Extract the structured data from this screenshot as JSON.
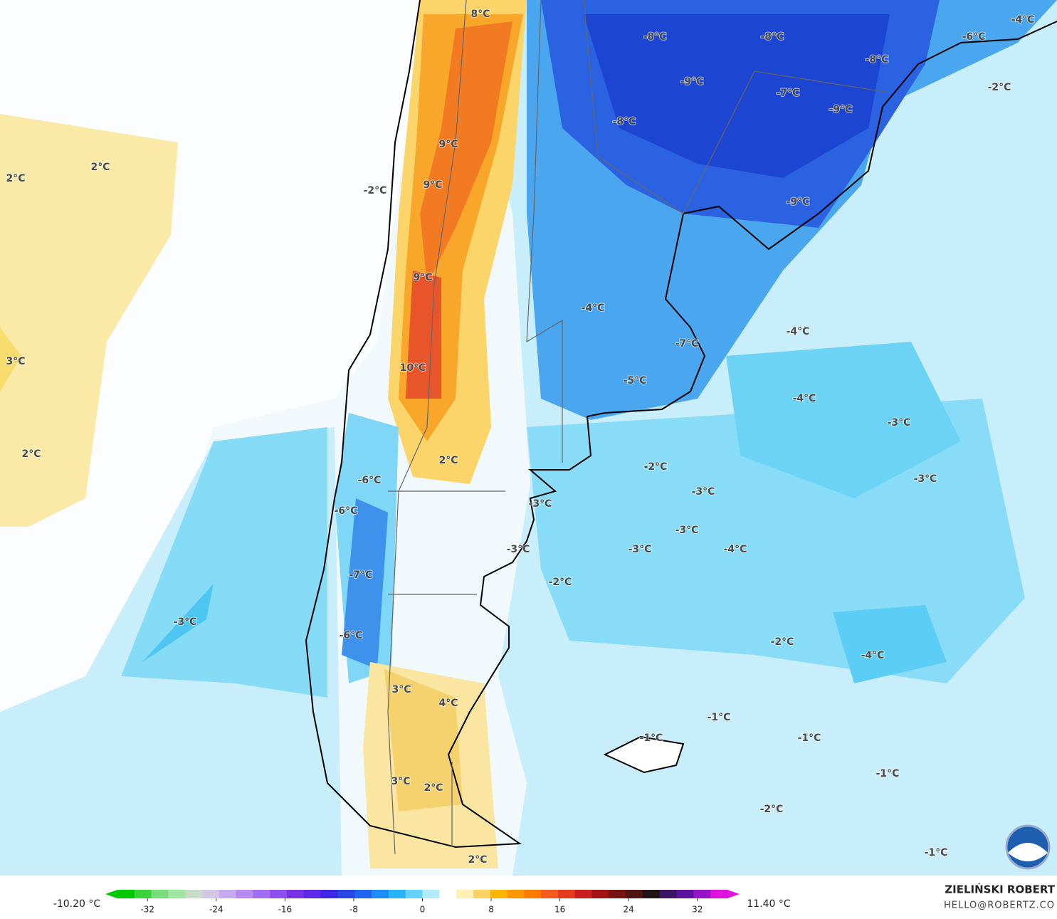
{
  "labels": [
    "8°C",
    "-8°C",
    "-8°C",
    "-6°C",
    "-4°C",
    "-8°C",
    "-9°C",
    "-7°C",
    "-9°C",
    "-2°C",
    "-8°C",
    "9°C",
    "2°C",
    "2°C",
    "9°C",
    "-2°C",
    "-9°C",
    "9°C",
    "-4°C",
    "-4°C",
    "-7°C",
    "3°C",
    "10°C",
    "-5°C",
    "-4°C",
    "-3°C",
    "2°C",
    "2°C",
    "-2°C",
    "-6°C",
    "-3°C",
    "-3°C",
    "-3°C",
    "-6°C",
    "-3°C",
    "-3°C",
    "-3°C",
    "-4°C",
    "-2°C",
    "-7°C",
    "-3°C",
    "-6°C",
    "-2°C",
    "-4°C",
    "3°C",
    "4°C",
    "-1°C",
    "-1°C",
    "-1°C",
    "-1°C",
    "3°C",
    "2°C",
    "-2°C",
    "-1°C",
    "2°C"
  ],
  "colorbar": {
    "min_label": "-10.20 °C",
    "max_label": "11.40 °C",
    "range": [
      -35.5,
      35.5
    ],
    "ticks": [
      -32,
      -24,
      -16,
      -8,
      0,
      8,
      16,
      24,
      32
    ],
    "colors": [
      "#00c800",
      "#3cd23c",
      "#78dc78",
      "#a0e6a0",
      "#c8dcc8",
      "#d2c8e6",
      "#c8aaf0",
      "#b48cf0",
      "#a06ef0",
      "#8c50f0",
      "#7832e6",
      "#5a28e6",
      "#3c28e6",
      "#2846e6",
      "#1e64f0",
      "#1e8cf5",
      "#28b4fa",
      "#64d2fa",
      "#b4ebfc",
      "#ffffff",
      "#fff0b4",
      "#ffd264",
      "#ffb400",
      "#ff9600",
      "#ff7800",
      "#f55a1e",
      "#e63c1e",
      "#c81e1e",
      "#a01414",
      "#781414",
      "#501414",
      "#1e1414",
      "#3c1464",
      "#5a14a0",
      "#9614c8",
      "#dc14dc"
    ]
  },
  "credit": {
    "name": "ZIELIŃSKI ROBERT",
    "email": "HELLO@ROBERTZ.CO"
  }
}
